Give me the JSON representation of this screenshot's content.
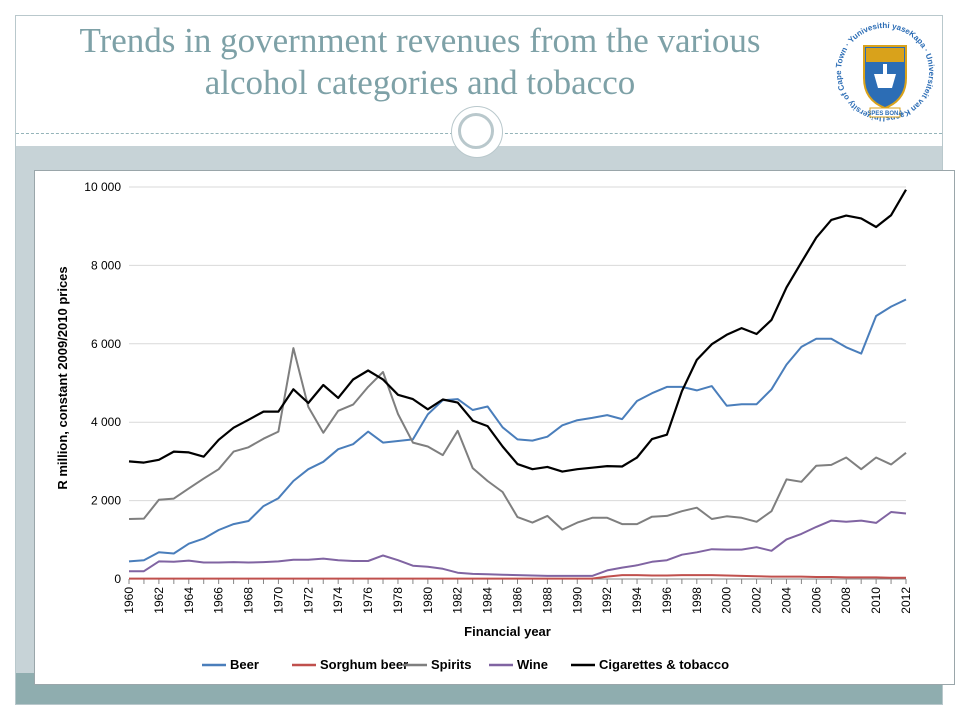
{
  "slide": {
    "title_line1": "Trends in government revenues from the various",
    "title_line2": "alcohol categories and tobacco"
  },
  "logo": {
    "ring_text": "University of Cape Town · Yunivesithi yaseKapa · Universiteit van Kaapstad ·",
    "banner_text": "SPES BONA",
    "colors": {
      "blue": "#2c6db5",
      "gold": "#d9a21b"
    }
  },
  "colors": {
    "title": "#7ea1a7",
    "band": "#c7d3d7",
    "bottom_band": "#8fadaf"
  },
  "chart_data": {
    "type": "line",
    "title": "",
    "xlabel": "Financial year",
    "ylabel": "R million, constant 2009/2010 prices",
    "xlim": [
      1960,
      2012
    ],
    "ylim": [
      0,
      10000
    ],
    "y_ticks": [
      0,
      2000,
      4000,
      6000,
      8000,
      10000
    ],
    "y_tick_labels": [
      "0",
      "2 000",
      "4 000",
      "6 000",
      "8 000",
      "10 000"
    ],
    "x_ticks": [
      1960,
      1962,
      1964,
      1966,
      1968,
      1970,
      1972,
      1974,
      1976,
      1978,
      1980,
      1982,
      1984,
      1986,
      1988,
      1990,
      1992,
      1994,
      1996,
      1998,
      2000,
      2002,
      2004,
      2006,
      2008,
      2010,
      2012
    ],
    "grid": "horizontal",
    "legend_position": "bottom",
    "x": [
      1960,
      1961,
      1962,
      1963,
      1964,
      1965,
      1966,
      1967,
      1968,
      1969,
      1970,
      1971,
      1972,
      1973,
      1974,
      1975,
      1976,
      1977,
      1978,
      1979,
      1980,
      1981,
      1982,
      1983,
      1984,
      1985,
      1986,
      1987,
      1988,
      1989,
      1990,
      1991,
      1992,
      1993,
      1994,
      1995,
      1996,
      1997,
      1998,
      1999,
      2000,
      2001,
      2002,
      2003,
      2004,
      2005,
      2006,
      2007,
      2008,
      2009,
      2010,
      2011,
      2012
    ],
    "series": [
      {
        "name": "Beer",
        "color": "#4a7ebb",
        "values": [
          450,
          480,
          680,
          650,
          900,
          1030,
          1250,
          1400,
          1480,
          1860,
          2060,
          2500,
          2800,
          2990,
          3310,
          3440,
          3760,
          3480,
          3520,
          3560,
          4200,
          4560,
          4590,
          4310,
          4400,
          3870,
          3560,
          3530,
          3630,
          3920,
          4050,
          4110,
          4180,
          4080,
          4540,
          4740,
          4900,
          4900,
          4810,
          4920,
          4420,
          4460,
          4460,
          4840,
          5470,
          5920,
          6130,
          6130,
          5910,
          5750,
          6710,
          6950,
          7130
        ]
      },
      {
        "name": "Sorghum beer",
        "color": "#c0504d",
        "values": [
          10,
          10,
          10,
          10,
          10,
          10,
          10,
          10,
          10,
          10,
          10,
          10,
          10,
          10,
          10,
          10,
          10,
          10,
          10,
          10,
          10,
          10,
          10,
          10,
          10,
          10,
          10,
          10,
          10,
          10,
          10,
          10,
          60,
          100,
          100,
          90,
          90,
          100,
          100,
          100,
          90,
          80,
          70,
          60,
          60,
          60,
          50,
          50,
          40,
          40,
          40,
          30,
          30
        ]
      },
      {
        "name": "Spirits",
        "color": "#7f7f7f",
        "values": [
          1530,
          1540,
          2020,
          2050,
          2310,
          2560,
          2800,
          3250,
          3360,
          3580,
          3760,
          5890,
          4390,
          3730,
          4290,
          4450,
          4900,
          5280,
          4210,
          3480,
          3380,
          3160,
          3780,
          2830,
          2500,
          2220,
          1580,
          1440,
          1610,
          1260,
          1440,
          1560,
          1560,
          1400,
          1400,
          1590,
          1610,
          1730,
          1820,
          1530,
          1600,
          1560,
          1460,
          1730,
          2540,
          2480,
          2890,
          2910,
          3100,
          2800,
          3100,
          2920,
          3220
        ]
      },
      {
        "name": "Wine",
        "color": "#8064a2",
        "values": [
          200,
          200,
          450,
          440,
          470,
          420,
          420,
          430,
          420,
          430,
          450,
          490,
          490,
          520,
          480,
          460,
          460,
          600,
          480,
          340,
          310,
          260,
          160,
          130,
          120,
          110,
          100,
          90,
          80,
          80,
          80,
          80,
          220,
          290,
          350,
          440,
          480,
          620,
          680,
          760,
          750,
          750,
          810,
          720,
          1010,
          1150,
          1330,
          1490,
          1460,
          1490,
          1430,
          1710,
          1670
        ]
      },
      {
        "name": "Cigarettes & tobacco",
        "color": "#000000",
        "values": [
          3000,
          2970,
          3040,
          3250,
          3230,
          3120,
          3550,
          3860,
          4060,
          4270,
          4270,
          4840,
          4490,
          4950,
          4620,
          5090,
          5320,
          5090,
          4700,
          4590,
          4330,
          4580,
          4500,
          4040,
          3900,
          3380,
          2930,
          2800,
          2860,
          2740,
          2800,
          2840,
          2880,
          2870,
          3100,
          3570,
          3680,
          4790,
          5590,
          5990,
          6230,
          6400,
          6250,
          6610,
          7440,
          8080,
          8710,
          9160,
          9270,
          9200,
          8980,
          9280,
          9930
        ]
      }
    ]
  }
}
